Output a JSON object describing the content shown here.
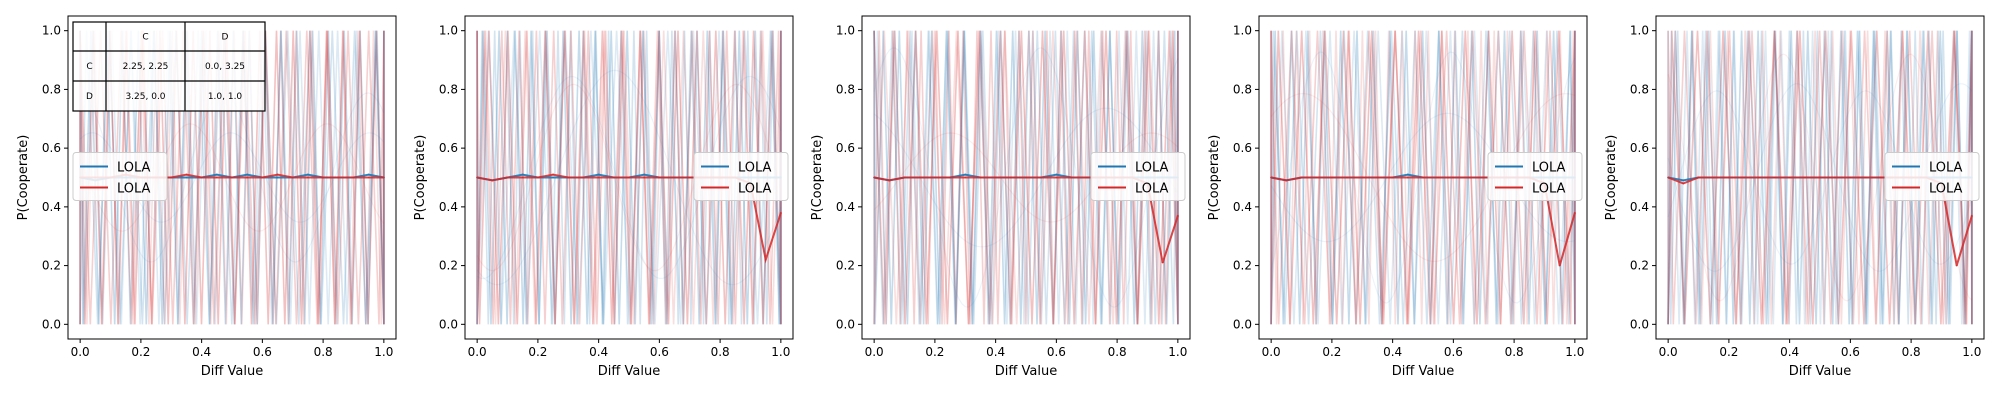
{
  "chart_data": [
    {
      "type": "line",
      "xlabel": "Diff Value",
      "ylabel": "P(Cooperate)",
      "xlim": [
        -0.04,
        1.04
      ],
      "ylim": [
        -0.05,
        1.05
      ],
      "xticks": [
        "0.0",
        "0.2",
        "0.4",
        "0.6",
        "0.8",
        "1.0"
      ],
      "yticks": [
        "0.0",
        "0.2",
        "0.4",
        "0.6",
        "0.8",
        "1.0"
      ],
      "grid": false,
      "legend_position": "center-left",
      "series": [
        {
          "name": "LOLA",
          "color": "#1f77b4",
          "x": [
            0.0,
            0.05,
            0.1,
            0.15,
            0.2,
            0.25,
            0.3,
            0.35,
            0.4,
            0.45,
            0.5,
            0.55,
            0.6,
            0.65,
            0.7,
            0.75,
            0.8,
            0.85,
            0.9,
            0.95,
            1.0
          ],
          "y": [
            0.5,
            0.49,
            0.5,
            0.5,
            0.5,
            0.5,
            0.5,
            0.5,
            0.5,
            0.51,
            0.5,
            0.51,
            0.5,
            0.5,
            0.5,
            0.51,
            0.5,
            0.5,
            0.5,
            0.51,
            0.5
          ]
        },
        {
          "name": "LOLA",
          "color": "#d62728",
          "x": [
            0.0,
            0.05,
            0.1,
            0.15,
            0.2,
            0.25,
            0.3,
            0.35,
            0.4,
            0.45,
            0.5,
            0.55,
            0.6,
            0.65,
            0.7,
            0.75,
            0.8,
            0.85,
            0.9,
            0.95,
            1.0
          ],
          "y": [
            0.5,
            0.5,
            0.5,
            0.51,
            0.5,
            0.5,
            0.5,
            0.51,
            0.5,
            0.5,
            0.5,
            0.5,
            0.5,
            0.51,
            0.5,
            0.5,
            0.5,
            0.5,
            0.5,
            0.5,
            0.5
          ]
        }
      ],
      "payoff_table": {
        "header": [
          "",
          "C",
          "D"
        ],
        "rows": [
          [
            "C",
            "2.25, 2.25",
            "0.0, 3.25"
          ],
          [
            "D",
            "3.25, 0.0",
            "1.0, 1.0"
          ]
        ]
      }
    },
    {
      "type": "line",
      "xlabel": "Diff Value",
      "ylabel": "P(Cooperate)",
      "xlim": [
        -0.04,
        1.04
      ],
      "ylim": [
        -0.05,
        1.05
      ],
      "xticks": [
        "0.0",
        "0.2",
        "0.4",
        "0.6",
        "0.8",
        "1.0"
      ],
      "yticks": [
        "0.0",
        "0.2",
        "0.4",
        "0.6",
        "0.8",
        "1.0"
      ],
      "grid": false,
      "legend_position": "center-right",
      "series": [
        {
          "name": "LOLA",
          "color": "#1f77b4",
          "x": [
            0.0,
            0.05,
            0.1,
            0.15,
            0.2,
            0.25,
            0.3,
            0.35,
            0.4,
            0.45,
            0.5,
            0.55,
            0.6,
            0.65,
            0.7,
            0.75,
            0.8,
            0.85,
            0.9,
            0.95,
            1.0
          ],
          "y": [
            0.5,
            0.49,
            0.5,
            0.51,
            0.5,
            0.5,
            0.5,
            0.5,
            0.51,
            0.5,
            0.5,
            0.51,
            0.5,
            0.5,
            0.5,
            0.5,
            0.5,
            0.5,
            0.5,
            0.5,
            0.5
          ]
        },
        {
          "name": "LOLA",
          "color": "#d62728",
          "x": [
            0.0,
            0.05,
            0.1,
            0.15,
            0.2,
            0.25,
            0.3,
            0.35,
            0.4,
            0.45,
            0.5,
            0.55,
            0.6,
            0.65,
            0.7,
            0.75,
            0.8,
            0.85,
            0.9,
            0.95,
            1.0
          ],
          "y": [
            0.5,
            0.49,
            0.5,
            0.5,
            0.5,
            0.51,
            0.5,
            0.5,
            0.5,
            0.5,
            0.5,
            0.5,
            0.5,
            0.5,
            0.5,
            0.5,
            0.5,
            0.5,
            0.48,
            0.22,
            0.38
          ]
        }
      ]
    },
    {
      "type": "line",
      "xlabel": "Diff Value",
      "ylabel": "P(Cooperate)",
      "xlim": [
        -0.04,
        1.04
      ],
      "ylim": [
        -0.05,
        1.05
      ],
      "xticks": [
        "0.0",
        "0.2",
        "0.4",
        "0.6",
        "0.8",
        "1.0"
      ],
      "yticks": [
        "0.0",
        "0.2",
        "0.4",
        "0.6",
        "0.8",
        "1.0"
      ],
      "grid": false,
      "legend_position": "center-right",
      "series": [
        {
          "name": "LOLA",
          "color": "#1f77b4",
          "x": [
            0.0,
            0.05,
            0.1,
            0.15,
            0.2,
            0.25,
            0.3,
            0.35,
            0.4,
            0.45,
            0.5,
            0.55,
            0.6,
            0.65,
            0.7,
            0.75,
            0.8,
            0.85,
            0.9,
            0.95,
            1.0
          ],
          "y": [
            0.5,
            0.49,
            0.5,
            0.5,
            0.5,
            0.5,
            0.51,
            0.5,
            0.5,
            0.5,
            0.5,
            0.5,
            0.51,
            0.5,
            0.5,
            0.5,
            0.5,
            0.5,
            0.5,
            0.5,
            0.5
          ]
        },
        {
          "name": "LOLA",
          "color": "#d62728",
          "x": [
            0.0,
            0.05,
            0.1,
            0.15,
            0.2,
            0.25,
            0.3,
            0.35,
            0.4,
            0.45,
            0.5,
            0.55,
            0.6,
            0.65,
            0.7,
            0.75,
            0.8,
            0.85,
            0.9,
            0.95,
            1.0
          ],
          "y": [
            0.5,
            0.49,
            0.5,
            0.5,
            0.5,
            0.5,
            0.5,
            0.5,
            0.5,
            0.5,
            0.5,
            0.5,
            0.5,
            0.5,
            0.5,
            0.5,
            0.5,
            0.5,
            0.48,
            0.21,
            0.37
          ]
        }
      ]
    },
    {
      "type": "line",
      "xlabel": "Diff Value",
      "ylabel": "P(Cooperate)",
      "xlim": [
        -0.04,
        1.04
      ],
      "ylim": [
        -0.05,
        1.05
      ],
      "xticks": [
        "0.0",
        "0.2",
        "0.4",
        "0.6",
        "0.8",
        "1.0"
      ],
      "yticks": [
        "0.0",
        "0.2",
        "0.4",
        "0.6",
        "0.8",
        "1.0"
      ],
      "grid": false,
      "legend_position": "center-right",
      "series": [
        {
          "name": "LOLA",
          "color": "#1f77b4",
          "x": [
            0.0,
            0.05,
            0.1,
            0.15,
            0.2,
            0.25,
            0.3,
            0.35,
            0.4,
            0.45,
            0.5,
            0.55,
            0.6,
            0.65,
            0.7,
            0.75,
            0.8,
            0.85,
            0.9,
            0.95,
            1.0
          ],
          "y": [
            0.5,
            0.49,
            0.5,
            0.5,
            0.5,
            0.5,
            0.5,
            0.5,
            0.5,
            0.51,
            0.5,
            0.5,
            0.5,
            0.5,
            0.5,
            0.5,
            0.5,
            0.5,
            0.5,
            0.5,
            0.5
          ]
        },
        {
          "name": "LOLA",
          "color": "#d62728",
          "x": [
            0.0,
            0.05,
            0.1,
            0.15,
            0.2,
            0.25,
            0.3,
            0.35,
            0.4,
            0.45,
            0.5,
            0.55,
            0.6,
            0.65,
            0.7,
            0.75,
            0.8,
            0.85,
            0.9,
            0.95,
            1.0
          ],
          "y": [
            0.5,
            0.49,
            0.5,
            0.5,
            0.5,
            0.5,
            0.5,
            0.5,
            0.5,
            0.5,
            0.5,
            0.5,
            0.5,
            0.5,
            0.5,
            0.5,
            0.5,
            0.5,
            0.48,
            0.2,
            0.38
          ]
        }
      ]
    },
    {
      "type": "line",
      "xlabel": "Diff Value",
      "ylabel": "P(Cooperate)",
      "xlim": [
        -0.04,
        1.04
      ],
      "ylim": [
        -0.05,
        1.05
      ],
      "xticks": [
        "0.0",
        "0.2",
        "0.4",
        "0.6",
        "0.8",
        "1.0"
      ],
      "yticks": [
        "0.0",
        "0.2",
        "0.4",
        "0.6",
        "0.8",
        "1.0"
      ],
      "grid": false,
      "legend_position": "center-right",
      "series": [
        {
          "name": "LOLA",
          "color": "#1f77b4",
          "x": [
            0.0,
            0.05,
            0.1,
            0.15,
            0.2,
            0.25,
            0.3,
            0.35,
            0.4,
            0.45,
            0.5,
            0.55,
            0.6,
            0.65,
            0.7,
            0.75,
            0.8,
            0.85,
            0.9,
            0.95,
            1.0
          ],
          "y": [
            0.5,
            0.49,
            0.5,
            0.5,
            0.5,
            0.5,
            0.5,
            0.5,
            0.5,
            0.5,
            0.5,
            0.5,
            0.5,
            0.5,
            0.5,
            0.5,
            0.5,
            0.5,
            0.5,
            0.5,
            0.5
          ]
        },
        {
          "name": "LOLA",
          "color": "#d62728",
          "x": [
            0.0,
            0.05,
            0.1,
            0.15,
            0.2,
            0.25,
            0.3,
            0.35,
            0.4,
            0.45,
            0.5,
            0.55,
            0.6,
            0.65,
            0.7,
            0.75,
            0.8,
            0.85,
            0.9,
            0.95,
            1.0
          ],
          "y": [
            0.5,
            0.48,
            0.5,
            0.5,
            0.5,
            0.5,
            0.5,
            0.5,
            0.5,
            0.5,
            0.5,
            0.5,
            0.5,
            0.5,
            0.5,
            0.5,
            0.5,
            0.5,
            0.48,
            0.2,
            0.37
          ]
        }
      ]
    }
  ]
}
